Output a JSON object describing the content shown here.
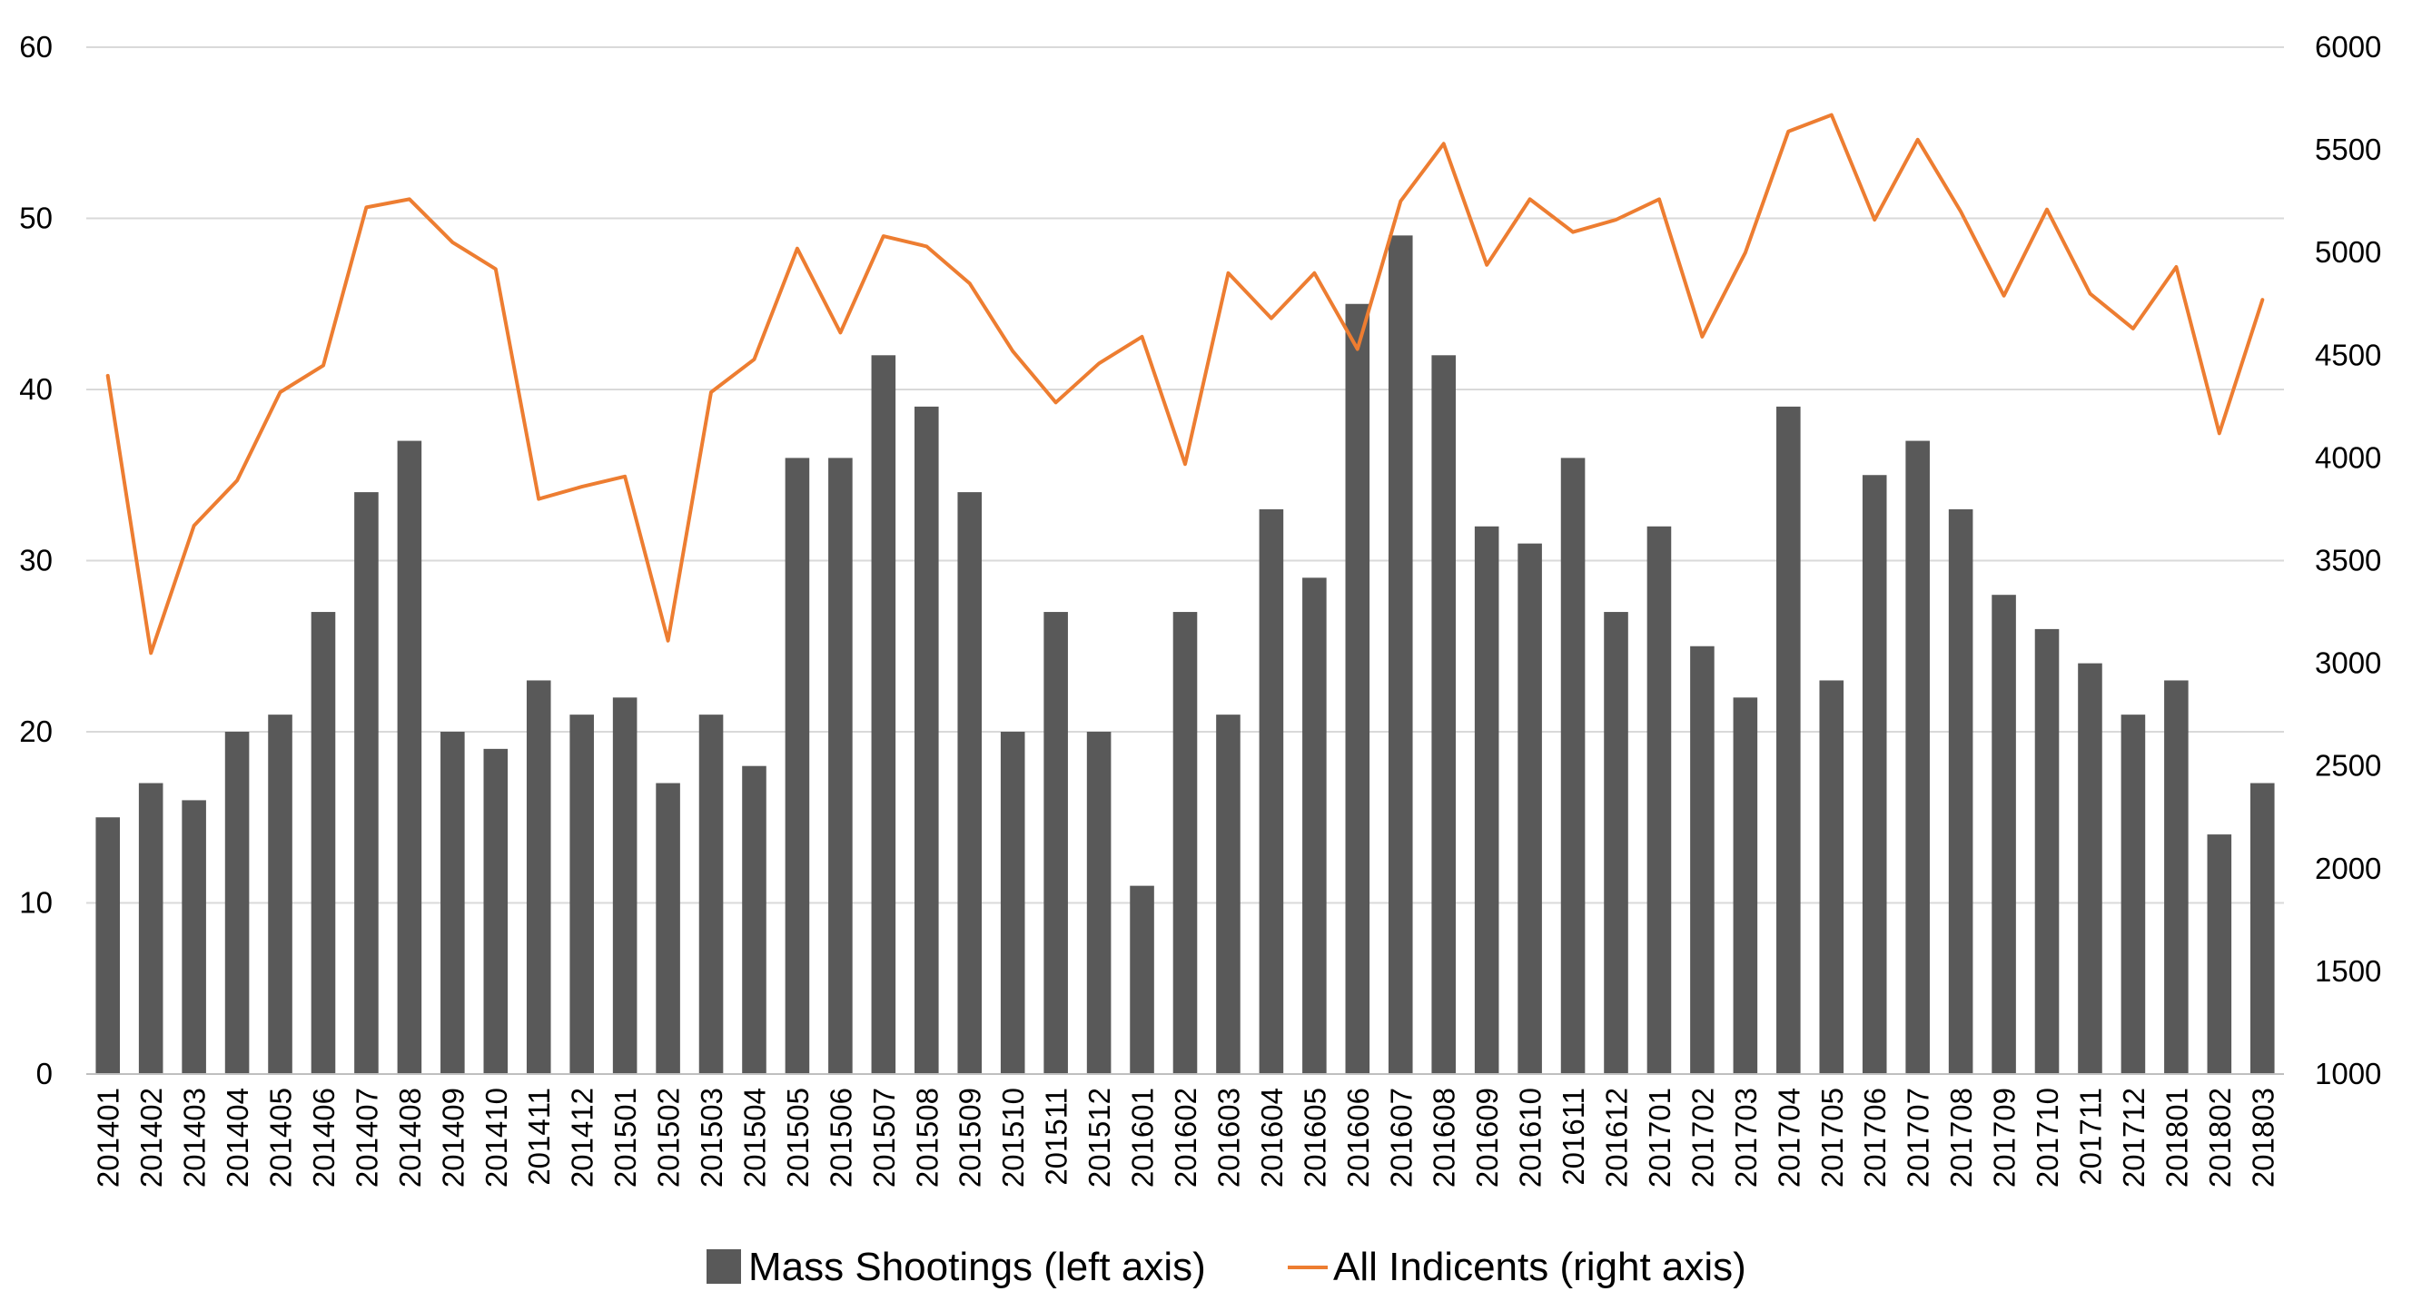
{
  "chart_data": {
    "type": "bar",
    "categories": [
      "201401",
      "201402",
      "201403",
      "201404",
      "201405",
      "201406",
      "201407",
      "201408",
      "201409",
      "201410",
      "201411",
      "201412",
      "201501",
      "201502",
      "201503",
      "201504",
      "201505",
      "201506",
      "201507",
      "201508",
      "201509",
      "201510",
      "201511",
      "201512",
      "201601",
      "201602",
      "201603",
      "201604",
      "201605",
      "201606",
      "201607",
      "201608",
      "201609",
      "201610",
      "201611",
      "201612",
      "201701",
      "201702",
      "201703",
      "201704",
      "201705",
      "201706",
      "201707",
      "201708",
      "201709",
      "201710",
      "201711",
      "201712",
      "201801",
      "201802",
      "201803"
    ],
    "series": [
      {
        "name": "Mass Shootings (left axis)",
        "type": "bar",
        "axis": "left",
        "color": "#595959",
        "values": [
          15,
          17,
          16,
          20,
          21,
          27,
          34,
          37,
          20,
          19,
          23,
          21,
          22,
          17,
          21,
          18,
          36,
          36,
          42,
          39,
          34,
          20,
          27,
          20,
          11,
          27,
          21,
          33,
          29,
          45,
          49,
          42,
          32,
          31,
          36,
          27,
          32,
          25,
          22,
          39,
          23,
          35,
          37,
          33,
          28,
          26,
          24,
          21,
          23,
          14,
          17
        ]
      },
      {
        "name": "All Indicents (right axis)",
        "type": "line",
        "axis": "right",
        "color": "#ed7d31",
        "values": [
          4400,
          3050,
          3670,
          3890,
          4320,
          4450,
          5220,
          5260,
          5050,
          4920,
          3800,
          3860,
          3910,
          3110,
          4320,
          4480,
          5020,
          4610,
          5080,
          5030,
          4850,
          4520,
          4270,
          4460,
          4590,
          3970,
          4900,
          4680,
          4900,
          4530,
          5250,
          5530,
          4940,
          5260,
          5100,
          5160,
          5260,
          4590,
          5000,
          5590,
          5670,
          5160,
          5550,
          5200,
          4790,
          5210,
          4800,
          4630,
          4930,
          4120,
          4770
        ]
      }
    ],
    "yAxisLeft": {
      "min": 0,
      "max": 60,
      "ticks": [
        "0",
        "10",
        "20",
        "30",
        "40",
        "50",
        "60"
      ]
    },
    "yAxisRight": {
      "min": 1000,
      "max": 6000,
      "ticks": [
        "1000",
        "1500",
        "2000",
        "2500",
        "3000",
        "3500",
        "4000",
        "4500",
        "5000",
        "5500",
        "6000"
      ]
    },
    "gridlines": true,
    "legend": {
      "position": "bottom",
      "items": [
        "Mass Shootings (left axis)",
        "All Indicents (right axis)"
      ]
    }
  }
}
